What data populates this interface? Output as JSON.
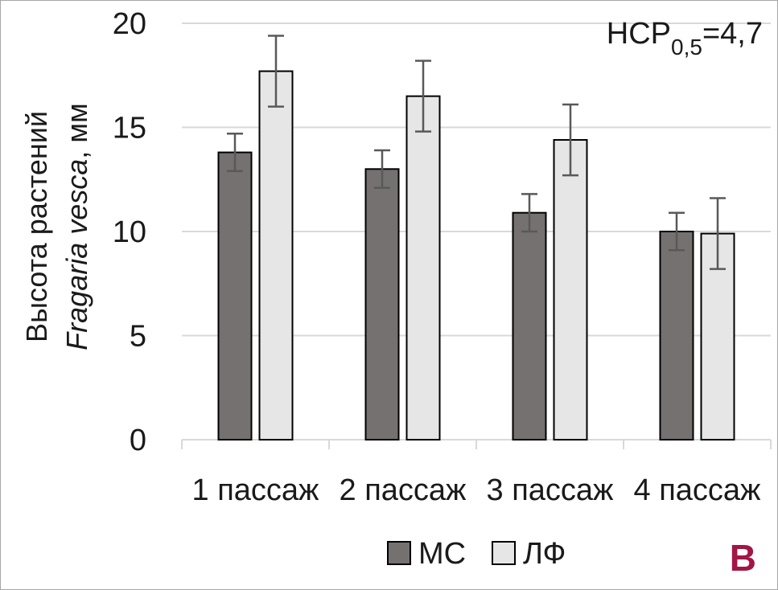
{
  "chart_data": {
    "type": "bar",
    "categories": [
      "1 пассаж",
      "2 пассаж",
      "3 пассаж",
      "4 пассаж"
    ],
    "series": [
      {
        "name": "МС",
        "values": [
          13.8,
          13.0,
          10.9,
          10.0
        ],
        "errors": [
          0.9,
          0.9,
          0.9,
          0.9
        ],
        "color": "#767171"
      },
      {
        "name": "ЛФ",
        "values": [
          17.7,
          16.5,
          14.4,
          9.9
        ],
        "errors": [
          1.7,
          1.7,
          1.7,
          1.7
        ],
        "color": "#e7e6e6"
      }
    ],
    "ylabel_line1": "Высота растений",
    "ylabel_line2_italic": "Fragaria vesca",
    "ylabel_line2_rest": ", мм",
    "ylim": [
      0,
      20
    ],
    "yticks": [
      "0",
      "5",
      "10",
      "15",
      "20"
    ],
    "ytick_values": [
      0,
      5,
      10,
      15,
      20
    ],
    "grid": true,
    "legend_position": "bottom",
    "annotation": {
      "prefix": "НСР",
      "subscript": "0,5",
      "suffix": "=4,7"
    },
    "panel_label": "В"
  }
}
